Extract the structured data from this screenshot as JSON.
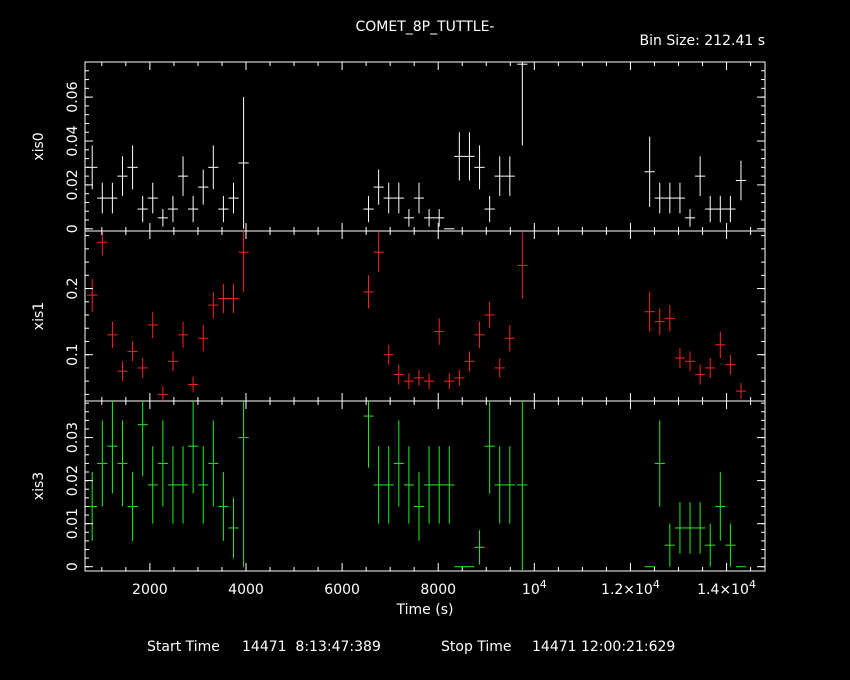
{
  "title": "COMET_8P_TUTTLE-",
  "bin_size_text": "Bin Size: 212.41 s",
  "x_axis_label": "Time (s)",
  "footer": {
    "start_label": "Start Time",
    "start_value": "14471  8:13:47:389",
    "stop_label": "Stop Time",
    "stop_value": "14471 12:00:21:629"
  },
  "x_tick_labels": [
    "2000",
    "4000",
    "6000",
    "8000",
    "10^4",
    "1.2×10^4",
    "1.4×10^4"
  ],
  "chart_data": {
    "type": "scatter",
    "x_range": [
      650,
      14800
    ],
    "x_ticks": [
      2000,
      4000,
      6000,
      8000,
      10000,
      12000,
      14000
    ],
    "panels": [
      {
        "name": "xis0",
        "color": "#ffffff",
        "ylim": [
          -0.001,
          0.076
        ],
        "yticks": [
          0,
          0.02,
          0.04,
          0.06
        ],
        "ytick_labels": [
          "0",
          "0.02",
          "0.04",
          "0.06"
        ],
        "points": [
          [
            800,
            0.028,
            0.01
          ],
          [
            1010,
            0.014,
            0.007
          ],
          [
            1220,
            0.014,
            0.007
          ],
          [
            1430,
            0.024,
            0.009
          ],
          [
            1640,
            0.028,
            0.01
          ],
          [
            1850,
            0.009,
            0.006
          ],
          [
            2060,
            0.014,
            0.007
          ],
          [
            2270,
            0.005,
            0.004
          ],
          [
            2480,
            0.009,
            0.006
          ],
          [
            2690,
            0.024,
            0.009
          ],
          [
            2900,
            0.009,
            0.006
          ],
          [
            3110,
            0.019,
            0.008
          ],
          [
            3320,
            0.028,
            0.01
          ],
          [
            3530,
            0.009,
            0.006
          ],
          [
            3740,
            0.014,
            0.007
          ],
          [
            3950,
            0.03,
            0.03
          ],
          [
            6550,
            0.009,
            0.006
          ],
          [
            6760,
            0.019,
            0.008
          ],
          [
            6970,
            0.014,
            0.007
          ],
          [
            7180,
            0.014,
            0.007
          ],
          [
            7390,
            0.005,
            0.004
          ],
          [
            7600,
            0.014,
            0.007
          ],
          [
            7810,
            0.005,
            0.004
          ],
          [
            8020,
            0.005,
            0.004
          ],
          [
            8230,
            0.0,
            0.0
          ],
          [
            8440,
            0.033,
            0.011
          ],
          [
            8650,
            0.033,
            0.011
          ],
          [
            8860,
            0.028,
            0.01
          ],
          [
            9070,
            0.009,
            0.006
          ],
          [
            9280,
            0.024,
            0.009
          ],
          [
            9490,
            0.024,
            0.009
          ],
          [
            9750,
            0.075,
            0.037
          ],
          [
            12400,
            0.026,
            0.016
          ],
          [
            12610,
            0.014,
            0.007
          ],
          [
            12820,
            0.014,
            0.007
          ],
          [
            13030,
            0.014,
            0.007
          ],
          [
            13240,
            0.005,
            0.004
          ],
          [
            13450,
            0.024,
            0.009
          ],
          [
            13660,
            0.009,
            0.006
          ],
          [
            13870,
            0.009,
            0.006
          ],
          [
            14080,
            0.009,
            0.006
          ],
          [
            14300,
            0.022,
            0.009
          ]
        ]
      },
      {
        "name": "xis1",
        "color": "#ff2020",
        "ylim": [
          0.03,
          0.287
        ],
        "yticks": [
          0.1,
          0.2
        ],
        "ytick_labels": [
          "0.1",
          "0.2"
        ],
        "points": [
          [
            800,
            0.19,
            0.025
          ],
          [
            1010,
            0.27,
            0.02
          ],
          [
            1220,
            0.13,
            0.02
          ],
          [
            1430,
            0.075,
            0.015
          ],
          [
            1640,
            0.105,
            0.015
          ],
          [
            1850,
            0.08,
            0.015
          ],
          [
            2060,
            0.145,
            0.02
          ],
          [
            2270,
            0.04,
            0.012
          ],
          [
            2480,
            0.09,
            0.015
          ],
          [
            2690,
            0.13,
            0.02
          ],
          [
            2900,
            0.055,
            0.012
          ],
          [
            3110,
            0.125,
            0.02
          ],
          [
            3320,
            0.175,
            0.02
          ],
          [
            3530,
            0.185,
            0.022
          ],
          [
            3740,
            0.185,
            0.022
          ],
          [
            3950,
            0.255,
            0.06
          ],
          [
            6550,
            0.195,
            0.025
          ],
          [
            6760,
            0.255,
            0.03
          ],
          [
            6970,
            0.1,
            0.015
          ],
          [
            7180,
            0.07,
            0.015
          ],
          [
            7390,
            0.06,
            0.012
          ],
          [
            7600,
            0.065,
            0.012
          ],
          [
            7810,
            0.06,
            0.012
          ],
          [
            8020,
            0.135,
            0.02
          ],
          [
            8230,
            0.06,
            0.012
          ],
          [
            8440,
            0.065,
            0.012
          ],
          [
            8650,
            0.09,
            0.015
          ],
          [
            8860,
            0.13,
            0.02
          ],
          [
            9070,
            0.16,
            0.02
          ],
          [
            9280,
            0.08,
            0.015
          ],
          [
            9490,
            0.125,
            0.02
          ],
          [
            9750,
            0.235,
            0.05
          ],
          [
            12400,
            0.165,
            0.03
          ],
          [
            12610,
            0.15,
            0.02
          ],
          [
            12820,
            0.155,
            0.02
          ],
          [
            13030,
            0.095,
            0.015
          ],
          [
            13240,
            0.09,
            0.015
          ],
          [
            13450,
            0.07,
            0.015
          ],
          [
            13660,
            0.08,
            0.015
          ],
          [
            13870,
            0.115,
            0.02
          ],
          [
            14080,
            0.085,
            0.015
          ],
          [
            14300,
            0.045,
            0.012
          ]
        ]
      },
      {
        "name": "xis3",
        "color": "#22ee22",
        "ylim": [
          -0.001,
          0.0385
        ],
        "yticks": [
          0,
          0.01,
          0.02,
          0.03
        ],
        "ytick_labels": [
          "0",
          "0.01",
          "0.02",
          "0.03"
        ],
        "points": [
          [
            800,
            0.014,
            0.008
          ],
          [
            1010,
            0.024,
            0.01
          ],
          [
            1220,
            0.028,
            0.011
          ],
          [
            1430,
            0.024,
            0.01
          ],
          [
            1640,
            0.014,
            0.008
          ],
          [
            1850,
            0.033,
            0.012
          ],
          [
            2060,
            0.019,
            0.009
          ],
          [
            2270,
            0.024,
            0.01
          ],
          [
            2480,
            0.019,
            0.009
          ],
          [
            2690,
            0.019,
            0.009
          ],
          [
            2900,
            0.028,
            0.011
          ],
          [
            3110,
            0.019,
            0.009
          ],
          [
            3320,
            0.024,
            0.01
          ],
          [
            3530,
            0.014,
            0.008
          ],
          [
            3740,
            0.009,
            0.007
          ],
          [
            3950,
            0.03,
            0.03
          ],
          [
            6550,
            0.035,
            0.012
          ],
          [
            6760,
            0.019,
            0.009
          ],
          [
            6970,
            0.019,
            0.009
          ],
          [
            7180,
            0.024,
            0.01
          ],
          [
            7390,
            0.019,
            0.009
          ],
          [
            7600,
            0.014,
            0.008
          ],
          [
            7810,
            0.019,
            0.009
          ],
          [
            8020,
            0.019,
            0.009
          ],
          [
            8230,
            0.019,
            0.009
          ],
          [
            8440,
            0.0,
            0.0
          ],
          [
            8650,
            0.0,
            0.0
          ],
          [
            8860,
            0.0045,
            0.004
          ],
          [
            9070,
            0.028,
            0.011
          ],
          [
            9280,
            0.019,
            0.009
          ],
          [
            9490,
            0.019,
            0.009
          ],
          [
            9750,
            0.019,
            0.024
          ],
          [
            12400,
            0.0,
            0.0
          ],
          [
            12610,
            0.024,
            0.01
          ],
          [
            12820,
            0.005,
            0.005
          ],
          [
            13030,
            0.009,
            0.006
          ],
          [
            13240,
            0.009,
            0.006
          ],
          [
            13450,
            0.009,
            0.006
          ],
          [
            13660,
            0.005,
            0.005
          ],
          [
            13870,
            0.014,
            0.008
          ],
          [
            14080,
            0.005,
            0.005
          ],
          [
            14300,
            0.0,
            0.0
          ]
        ]
      }
    ]
  }
}
